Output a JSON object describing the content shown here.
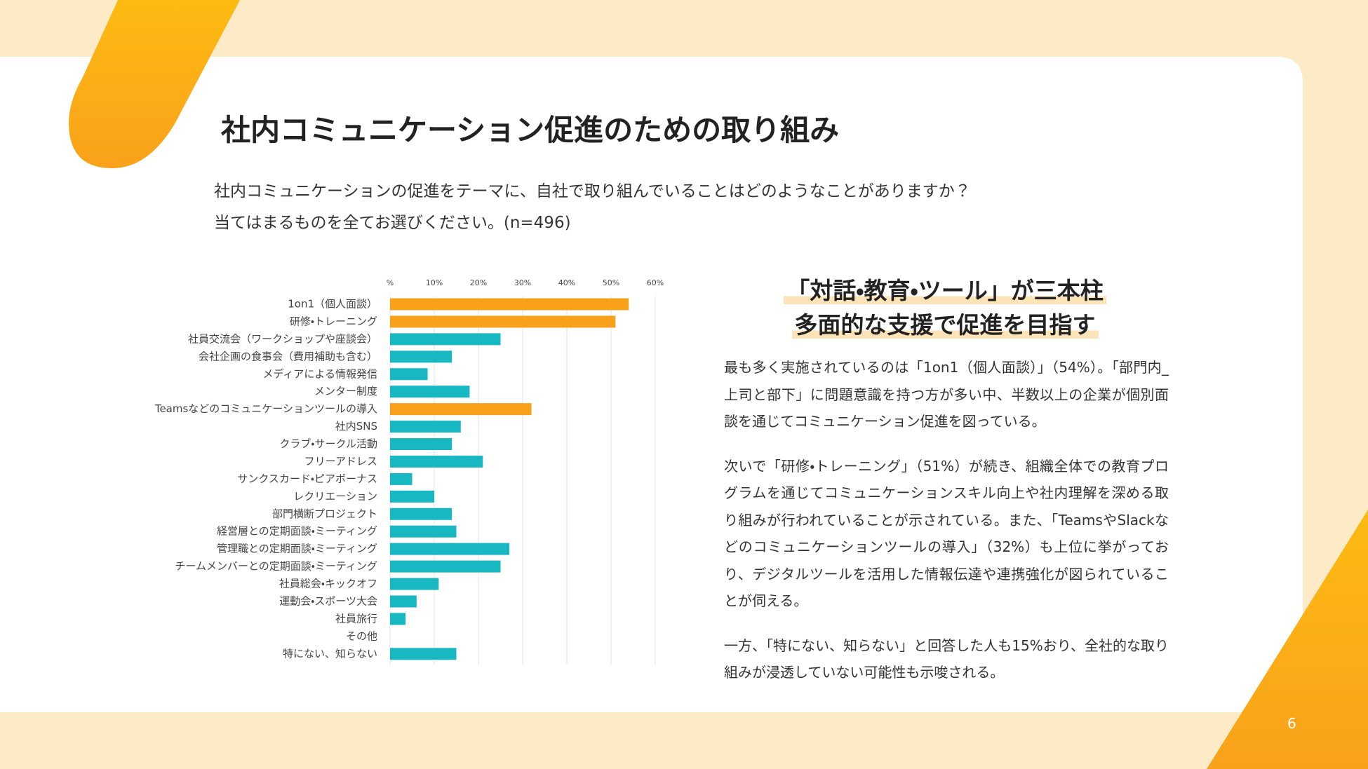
{
  "slide": {
    "title": "社内コミュニケーション促進のための取り組み",
    "question": [
      "社内コミュニケーションの促進をテーマに、自社で取り組んでいることはどのようなことがありますか？",
      "当てはまるものを全てお選びください。(n=496)"
    ],
    "heading": [
      "「対話・教育・ツール」が三本柱",
      "多面的な支援で促進を目指す"
    ],
    "paragraphs": [
      "最も多く実施されているのは「1on1（個人面談）」（54%）。「部門内_上司と部下」に問題意識を持つ方が多い中、半数以上の企業が個別面談を通じてコミュニケーション促進を図っている。",
      "次いで「研修・トレーニング」（51%）が続き、組織全体での教育プログラムを通じてコミュニケーションスキル向上や社内理解を深める取り組みが行われていることが示されている。また、「TeamsやSlackなどのコミュニケーションツールの導入」（32%）も上位に挙がっており、デジタルツールを活用した情報伝達や連携強化が図られていることが伺える。",
      "一方、「特にない、知らない」と回答した人も15%おり、全社的な取り組みが浸透していない可能性も示唆される。"
    ],
    "page_number": "6"
  },
  "chart_data": {
    "type": "bar",
    "orientation": "horizontal",
    "categories": [
      "1on1（個人面談）",
      "研修・トレーニング",
      "社員交流会（ワークショップや座談会）",
      "会社企画の食事会（費用補助も含む）",
      "メディアによる情報発信",
      "メンター制度",
      "Teamsなどのコミュニケーションツールの導入",
      "社内SNS",
      "クラブ・サークル活動",
      "フリーアドレス",
      "サンクスカード・ピアボーナス",
      "レクリエーション",
      "部門横断プロジェクト",
      "経営層との定期面談・ミーティング",
      "管理職との定期面談・ミーティング",
      "チームメンバーとの定期面談・ミーティング",
      "社員総会・キックオフ",
      "運動会・スポーツ大会",
      "社員旅行",
      "その他",
      "特にない、知らない"
    ],
    "values": [
      54,
      51,
      25,
      14,
      8.5,
      18,
      32,
      16,
      14,
      21,
      5,
      10,
      14,
      15,
      27,
      25,
      11,
      6,
      3.5,
      0,
      15
    ],
    "colors": [
      "#f9a11b",
      "#f9a11b",
      "#17b8c2",
      "#17b8c2",
      "#17b8c2",
      "#17b8c2",
      "#f9a11b",
      "#17b8c2",
      "#17b8c2",
      "#17b8c2",
      "#17b8c2",
      "#17b8c2",
      "#17b8c2",
      "#17b8c2",
      "#17b8c2",
      "#17b8c2",
      "#17b8c2",
      "#17b8c2",
      "#17b8c2",
      "#17b8c2",
      "#17b8c2"
    ],
    "xlim": [
      0,
      60
    ],
    "xticks": [
      {
        "value": 0,
        "label": "%"
      },
      {
        "value": 10,
        "label": "10%"
      },
      {
        "value": 20,
        "label": "20%"
      },
      {
        "value": 30,
        "label": "30%"
      },
      {
        "value": 40,
        "label": "40%"
      },
      {
        "value": 50,
        "label": "50%"
      },
      {
        "value": 60,
        "label": "60%"
      }
    ],
    "grid": true
  }
}
